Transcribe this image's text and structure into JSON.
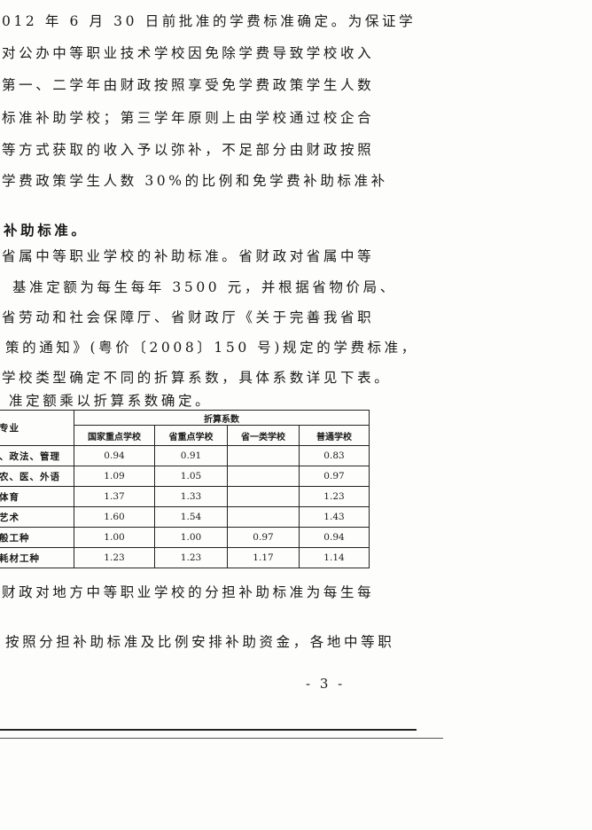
{
  "paragraph_lines": [
    "012 年 6 月 30 日前批准的学费标准确定。为保证学",
    " 对公办中等职业技术学校因免除学费导致学校收入",
    " 第一、二学年由财政按照享受免学费政策学生人数",
    " 标准补助学校；第三学年原则上由学校通过校企合",
    " 等方式获取的收入予以弥补，不足部分由财政按照",
    "学费政策学生人数  30%的比例和免学费补助标准补"
  ],
  "heading": "补助标准。",
  "paragraph2_lines": [
    "省属中等职业学校的补助标准。省财政对省属中等",
    "基准定额为每生每年  3500  元，并根据省物价局、",
    "省劳动和社会保障厅、省财政厅《关于完善我省职",
    "策的通知》(粤价〔2008〕150 号)规定的学费标准，",
    "学校类型确定不同的折算系数，具体系数详见下表。",
    "准定额乘以折算系数确定。"
  ],
  "table": {
    "col0_header": "专业",
    "group_header": "折算系数",
    "columns": [
      "国家重点学校",
      "省重点学校",
      "省一类学校",
      "普通学校"
    ],
    "rows": [
      {
        "label": "、政法、管理",
        "values": [
          "0.94",
          "0.91",
          "",
          "0.83"
        ]
      },
      {
        "label": "农、医、外语",
        "values": [
          "1.09",
          "1.05",
          "",
          "0.97"
        ]
      },
      {
        "label": "体育",
        "values": [
          "1.37",
          "1.33",
          "",
          "1.23"
        ]
      },
      {
        "label": "艺术",
        "values": [
          "1.60",
          "1.54",
          "",
          "1.43"
        ]
      },
      {
        "label": "般工种",
        "values": [
          "1.00",
          "1.00",
          "0.97",
          "0.94"
        ]
      },
      {
        "label": "耗材工种",
        "values": [
          "1.23",
          "1.23",
          "1.17",
          "1.14"
        ]
      }
    ]
  },
  "after_lines": [
    "财政对地方中等职业学校的分担补助标准为每生每",
    "按照分担补助标准及比例安排补助资金，各地中等职"
  ],
  "page_number": "- 3 -"
}
